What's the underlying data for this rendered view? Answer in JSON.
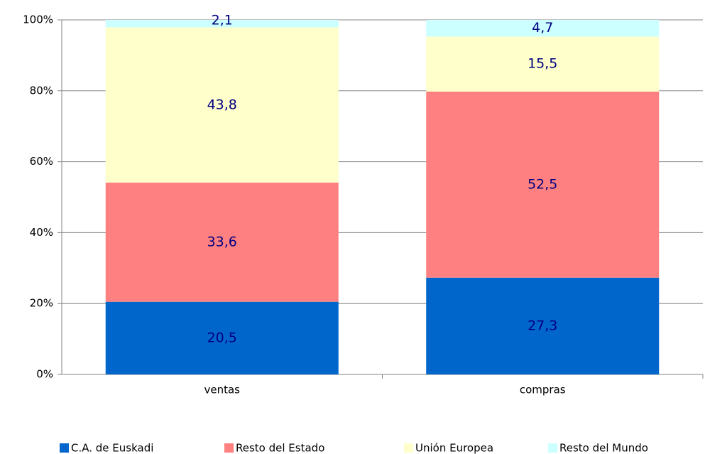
{
  "chart_data": {
    "type": "stacked_bar",
    "categories": [
      "ventas",
      "compras"
    ],
    "series": [
      {
        "name": "C.A. de Euskadi",
        "color": "#0066cc",
        "values": [
          20.5,
          27.3
        ],
        "value_labels": [
          "20,5",
          "27,3"
        ]
      },
      {
        "name": "Resto del Estado",
        "color": "#ff8080",
        "values": [
          33.6,
          52.5
        ],
        "value_labels": [
          "33,6",
          "52,5"
        ]
      },
      {
        "name": "Unión Europea",
        "color": "#ffffcc",
        "values": [
          43.8,
          15.5
        ],
        "value_labels": [
          "43,8",
          "15,5"
        ]
      },
      {
        "name": "Resto del Mundo",
        "color": "#ccffff",
        "values": [
          2.1,
          4.7
        ],
        "value_labels": [
          "2,1",
          "4,7"
        ]
      }
    ],
    "ylim": [
      0,
      100
    ],
    "yticks": [
      {
        "value": 0,
        "label": "0%"
      },
      {
        "value": 20,
        "label": "20%"
      },
      {
        "value": 40,
        "label": "40%"
      },
      {
        "value": 60,
        "label": "60%"
      },
      {
        "value": 80,
        "label": "80%"
      },
      {
        "value": 100,
        "label": "100%"
      }
    ],
    "grid": true,
    "legend": "bottom"
  }
}
